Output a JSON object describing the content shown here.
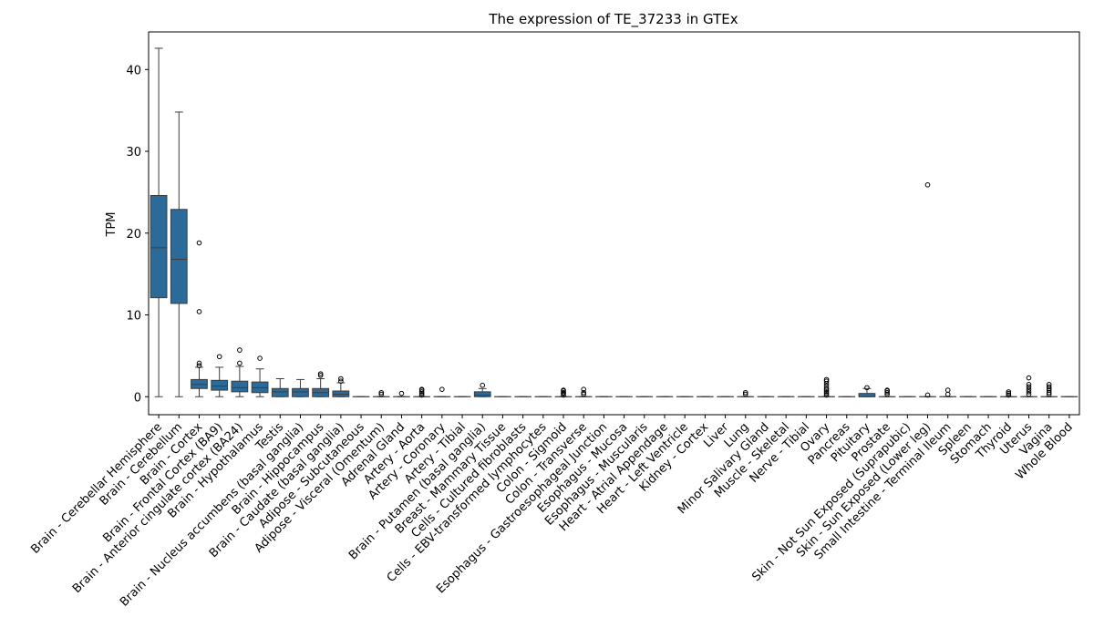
{
  "chart_data": {
    "type": "box",
    "title": "The expression of TE_37233 in GTEx",
    "xlabel": "",
    "ylabel": "TPM",
    "ylim": [
      -2.2,
      44.6
    ],
    "yticks": [
      0,
      10,
      20,
      30,
      40
    ],
    "grid": false,
    "box_color": "#2b6a99",
    "categories": [
      "Brain - Cerebellar Hemisphere",
      "Brain - Cerebellum",
      "Brain - Cortex",
      "Brain - Frontal Cortex (BA9)",
      "Brain - Anterior cingulate cortex (BA24)",
      "Brain - Hypothalamus",
      "Testis",
      "Brain - Nucleus accumbens (basal ganglia)",
      "Brain - Hippocampus",
      "Brain - Caudate (basal ganglia)",
      "Adipose - Subcutaneous",
      "Adipose - Visceral (Omentum)",
      "Adrenal Gland",
      "Artery - Aorta",
      "Artery - Coronary",
      "Artery - Tibial",
      "Brain - Putamen (basal ganglia)",
      "Breast - Mammary Tissue",
      "Cells - Cultured fibroblasts",
      "Cells - EBV-transformed lymphocytes",
      "Colon - Sigmoid",
      "Colon - Transverse",
      "Esophagus - Gastroesophageal Junction",
      "Esophagus - Mucosa",
      "Esophagus - Muscularis",
      "Heart - Atrial Appendage",
      "Heart - Left Ventricle",
      "Kidney - Cortex",
      "Liver",
      "Lung",
      "Minor Salivary Gland",
      "Muscle - Skeletal",
      "Nerve - Tibial",
      "Ovary",
      "Pancreas",
      "Pituitary",
      "Prostate",
      "Skin - Not Sun Exposed (Suprapubic)",
      "Skin - Sun Exposed (Lower leg)",
      "Small Intestine - Terminal Ileum",
      "Spleen",
      "Stomach",
      "Thyroid",
      "Uterus",
      "Vagina",
      "Whole Blood"
    ],
    "boxes": [
      {
        "min": 0,
        "q1": 12.1,
        "median": 18.2,
        "q3": 24.6,
        "max": 42.6,
        "outliers": []
      },
      {
        "min": 0,
        "q1": 11.4,
        "median": 16.8,
        "q3": 22.9,
        "max": 34.8,
        "outliers": []
      },
      {
        "min": 0,
        "q1": 1.0,
        "median": 1.5,
        "q3": 2.1,
        "max": 3.6,
        "outliers": [
          3.8,
          4.1,
          10.4,
          18.8
        ]
      },
      {
        "min": 0,
        "q1": 0.8,
        "median": 1.3,
        "q3": 2.0,
        "max": 3.6,
        "outliers": [
          4.9
        ]
      },
      {
        "min": 0,
        "q1": 0.6,
        "median": 1.1,
        "q3": 1.9,
        "max": 3.7,
        "outliers": [
          4.1,
          5.7
        ]
      },
      {
        "min": 0,
        "q1": 0.5,
        "median": 1.1,
        "q3": 1.8,
        "max": 3.4,
        "outliers": [
          4.7
        ]
      },
      {
        "min": 0,
        "q1": 0.0,
        "median": 0.6,
        "q3": 1.0,
        "max": 2.2,
        "outliers": []
      },
      {
        "min": 0,
        "q1": 0.0,
        "median": 0.6,
        "q3": 1.0,
        "max": 2.1,
        "outliers": []
      },
      {
        "min": 0,
        "q1": 0.0,
        "median": 0.5,
        "q3": 1.0,
        "max": 2.2,
        "outliers": [
          2.6,
          2.8
        ]
      },
      {
        "min": 0,
        "q1": 0.0,
        "median": 0.3,
        "q3": 0.7,
        "max": 1.7,
        "outliers": [
          1.9,
          2.2
        ]
      },
      {
        "min": 0,
        "q1": 0,
        "median": 0,
        "q3": 0,
        "max": 0,
        "outliers": []
      },
      {
        "min": 0,
        "q1": 0,
        "median": 0,
        "q3": 0,
        "max": 0,
        "outliers": [
          0.3,
          0.5
        ]
      },
      {
        "min": 0,
        "q1": 0,
        "median": 0,
        "q3": 0,
        "max": 0,
        "outliers": [
          0.4
        ]
      },
      {
        "min": 0,
        "q1": 0,
        "median": 0,
        "q3": 0,
        "max": 0,
        "outliers": [
          0.2,
          0.4,
          0.6,
          0.8,
          0.9
        ]
      },
      {
        "min": 0,
        "q1": 0,
        "median": 0,
        "q3": 0,
        "max": 0,
        "outliers": [
          0.9
        ]
      },
      {
        "min": 0,
        "q1": 0,
        "median": 0,
        "q3": 0,
        "max": 0,
        "outliers": []
      },
      {
        "min": 0,
        "q1": 0.0,
        "median": 0.2,
        "q3": 0.6,
        "max": 1.0,
        "outliers": [
          1.4
        ]
      },
      {
        "min": 0,
        "q1": 0,
        "median": 0,
        "q3": 0,
        "max": 0,
        "outliers": []
      },
      {
        "min": 0,
        "q1": 0,
        "median": 0,
        "q3": 0,
        "max": 0,
        "outliers": []
      },
      {
        "min": 0,
        "q1": 0,
        "median": 0,
        "q3": 0,
        "max": 0,
        "outliers": []
      },
      {
        "min": 0,
        "q1": 0,
        "median": 0,
        "q3": 0,
        "max": 0,
        "outliers": [
          0.2,
          0.4,
          0.5,
          0.7,
          0.8
        ]
      },
      {
        "min": 0,
        "q1": 0,
        "median": 0,
        "q3": 0,
        "max": 0,
        "outliers": [
          0.3,
          0.5,
          0.9
        ]
      },
      {
        "min": 0,
        "q1": 0,
        "median": 0,
        "q3": 0,
        "max": 0,
        "outliers": []
      },
      {
        "min": 0,
        "q1": 0,
        "median": 0,
        "q3": 0,
        "max": 0,
        "outliers": []
      },
      {
        "min": 0,
        "q1": 0,
        "median": 0,
        "q3": 0,
        "max": 0,
        "outliers": []
      },
      {
        "min": 0,
        "q1": 0,
        "median": 0,
        "q3": 0,
        "max": 0,
        "outliers": []
      },
      {
        "min": 0,
        "q1": 0,
        "median": 0,
        "q3": 0,
        "max": 0,
        "outliers": []
      },
      {
        "min": 0,
        "q1": 0,
        "median": 0,
        "q3": 0,
        "max": 0,
        "outliers": []
      },
      {
        "min": 0,
        "q1": 0,
        "median": 0,
        "q3": 0,
        "max": 0,
        "outliers": []
      },
      {
        "min": 0,
        "q1": 0,
        "median": 0,
        "q3": 0,
        "max": 0,
        "outliers": [
          0.3,
          0.5
        ]
      },
      {
        "min": 0,
        "q1": 0,
        "median": 0,
        "q3": 0,
        "max": 0,
        "outliers": []
      },
      {
        "min": 0,
        "q1": 0,
        "median": 0,
        "q3": 0,
        "max": 0,
        "outliers": []
      },
      {
        "min": 0,
        "q1": 0,
        "median": 0,
        "q3": 0,
        "max": 0,
        "outliers": []
      },
      {
        "min": 0,
        "q1": 0,
        "median": 0,
        "q3": 0,
        "max": 0,
        "outliers": [
          0.2,
          0.4,
          0.6,
          0.8,
          1.0,
          1.3,
          1.6,
          1.9,
          2.1
        ]
      },
      {
        "min": 0,
        "q1": 0,
        "median": 0,
        "q3": 0,
        "max": 0,
        "outliers": []
      },
      {
        "min": 0,
        "q1": 0.0,
        "median": 0.0,
        "q3": 0.4,
        "max": 1.0,
        "outliers": [
          1.1
        ]
      },
      {
        "min": 0,
        "q1": 0,
        "median": 0,
        "q3": 0,
        "max": 0,
        "outliers": [
          0.3,
          0.5,
          0.7,
          0.8
        ]
      },
      {
        "min": 0,
        "q1": 0,
        "median": 0,
        "q3": 0,
        "max": 0,
        "outliers": []
      },
      {
        "min": 0,
        "q1": 0,
        "median": 0,
        "q3": 0,
        "max": 0,
        "outliers": [
          0.2,
          25.9
        ]
      },
      {
        "min": 0,
        "q1": 0,
        "median": 0,
        "q3": 0,
        "max": 0,
        "outliers": [
          0.3,
          0.8
        ]
      },
      {
        "min": 0,
        "q1": 0,
        "median": 0,
        "q3": 0,
        "max": 0,
        "outliers": []
      },
      {
        "min": 0,
        "q1": 0,
        "median": 0,
        "q3": 0,
        "max": 0,
        "outliers": []
      },
      {
        "min": 0,
        "q1": 0,
        "median": 0,
        "q3": 0,
        "max": 0,
        "outliers": [
          0.2,
          0.4,
          0.6
        ]
      },
      {
        "min": 0,
        "q1": 0,
        "median": 0,
        "q3": 0,
        "max": 0,
        "outliers": [
          0.3,
          0.6,
          0.9,
          1.2,
          1.5,
          2.3
        ]
      },
      {
        "min": 0,
        "q1": 0,
        "median": 0,
        "q3": 0,
        "max": 0,
        "outliers": [
          0.3,
          0.5,
          0.8,
          1.0,
          1.2,
          1.5
        ]
      },
      {
        "min": 0,
        "q1": 0,
        "median": 0,
        "q3": 0,
        "max": 0,
        "outliers": []
      }
    ]
  }
}
